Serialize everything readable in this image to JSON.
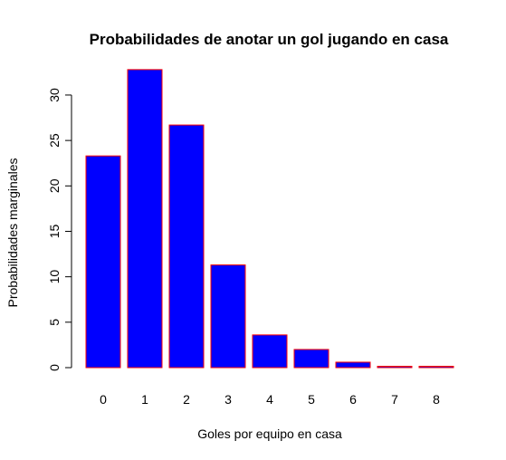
{
  "chart_data": {
    "type": "bar",
    "title": "Probabilidades de anotar un gol jugando en casa",
    "xlabel": "Goles por equipo en casa",
    "ylabel": "Probabilidades marginales",
    "categories": [
      "0",
      "1",
      "2",
      "3",
      "4",
      "5",
      "6",
      "7",
      "8"
    ],
    "values": [
      23.3,
      32.8,
      26.7,
      11.3,
      3.6,
      2.0,
      0.6,
      0.15,
      0.15
    ],
    "y_ticks": [
      "0",
      "5",
      "10",
      "15",
      "20",
      "25",
      "30"
    ],
    "ylim": [
      0,
      32.8
    ],
    "grid": false,
    "colors": {
      "bar_fill": "#0000ff",
      "bar_border": "#ff0000",
      "axis": "#000000",
      "text": "#000000"
    }
  }
}
